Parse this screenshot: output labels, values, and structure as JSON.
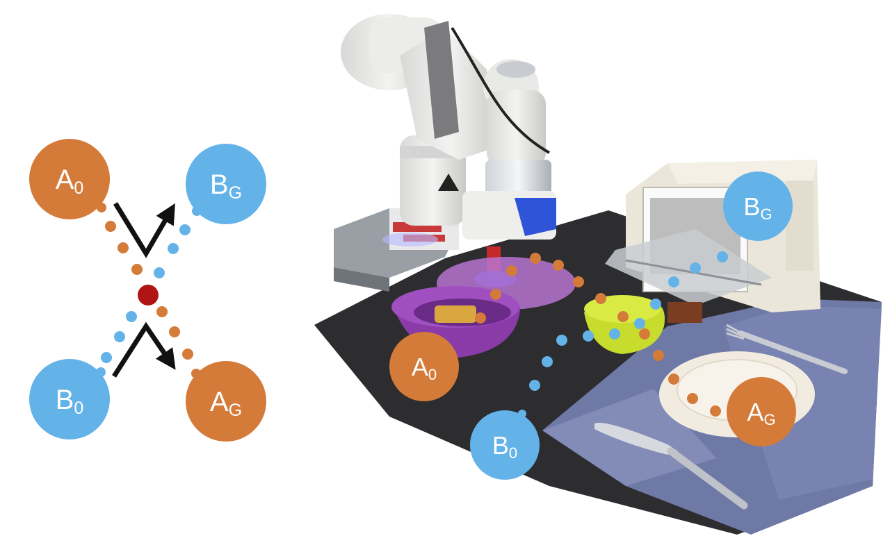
{
  "colors": {
    "task_a": "#D47B3A",
    "task_b": "#63B2E8",
    "collision": "#B01515",
    "arrow": "#111111",
    "bubble_text": "#ffffff"
  },
  "labels": {
    "a_start": {
      "main": "A",
      "sub": "0"
    },
    "a_goal": {
      "main": "A",
      "sub": "G"
    },
    "b_start": {
      "main": "B",
      "sub": "0"
    },
    "b_goal": {
      "main": "B",
      "sub": "G"
    }
  },
  "icons": [
    "collision-point-icon",
    "swap-arrow-icon",
    "robot-arm-icon",
    "toaster-oven-icon",
    "plate-icon",
    "bowl-icon",
    "fork-icon",
    "knife-icon"
  ]
}
